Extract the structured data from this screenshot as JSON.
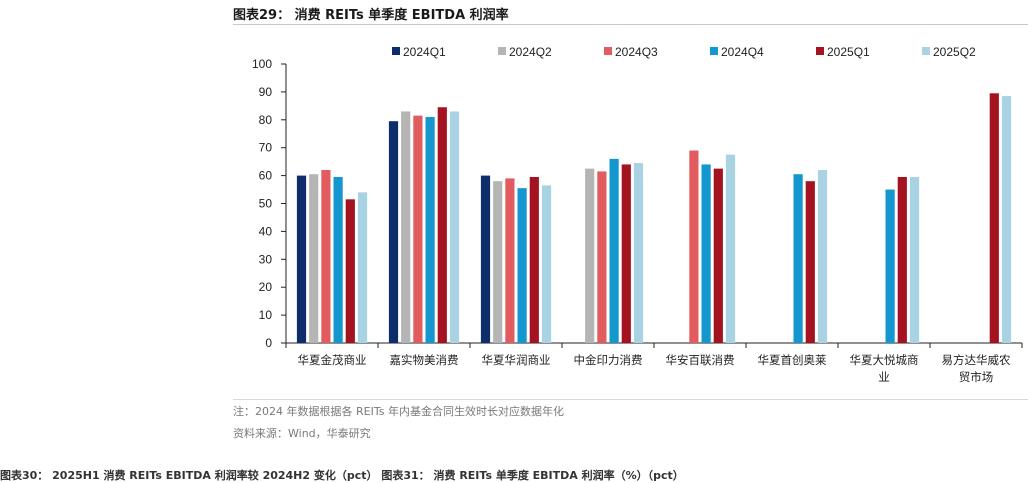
{
  "figure": {
    "title": "图表29： 消费 REITs 单季度 EBITDA 利润率",
    "note": "注：2024 年数据根据各 REITs 年内基金合同生效时长对应数据年化",
    "source": "资料来源：Wind，华泰研究",
    "next_caption": "图表30：  2025H1 消费 REITs EBITDA 利润率较 2024H2 变化（pct）          图表31：  消费 REITs 单季度 EBITDA 利润率（%）（pct）"
  },
  "chart_data": {
    "type": "bar",
    "title": "",
    "xlabel": "",
    "ylabel": "",
    "ylim": [
      0,
      100
    ],
    "yticks": [
      0,
      10,
      20,
      30,
      40,
      50,
      60,
      70,
      80,
      90,
      100
    ],
    "grid": false,
    "legend_position": "top",
    "categories": [
      [
        "华夏金茂商业"
      ],
      [
        "嘉实物美消费"
      ],
      [
        "华夏华润商业"
      ],
      [
        "中金印力消费"
      ],
      [
        "华安百联消费"
      ],
      [
        "华夏首创奥莱"
      ],
      [
        "华夏大悦城商",
        "业"
      ],
      [
        "易方达华威农",
        "贸市场"
      ]
    ],
    "series": [
      {
        "name": "2024Q1",
        "color": "#0d2d6b",
        "values": [
          60,
          79.5,
          60,
          null,
          null,
          null,
          null,
          null
        ]
      },
      {
        "name": "2024Q2",
        "color": "#b5b5b5",
        "values": [
          60.5,
          83,
          58,
          62.5,
          null,
          null,
          null,
          null
        ]
      },
      {
        "name": "2024Q3",
        "color": "#e25c5f",
        "values": [
          62,
          81.5,
          59,
          61.5,
          69,
          null,
          null,
          null
        ]
      },
      {
        "name": "2024Q4",
        "color": "#1497cf",
        "values": [
          59.5,
          81,
          55.5,
          66,
          64,
          60.5,
          55,
          null
        ]
      },
      {
        "name": "2025Q1",
        "color": "#a31420",
        "values": [
          51.5,
          84.5,
          59.5,
          64,
          62.5,
          58,
          59.5,
          89.5
        ]
      },
      {
        "name": "2025Q2",
        "color": "#a9d3e2",
        "values": [
          54,
          83,
          56.5,
          64.5,
          67.5,
          62,
          59.5,
          88.5
        ]
      }
    ]
  }
}
